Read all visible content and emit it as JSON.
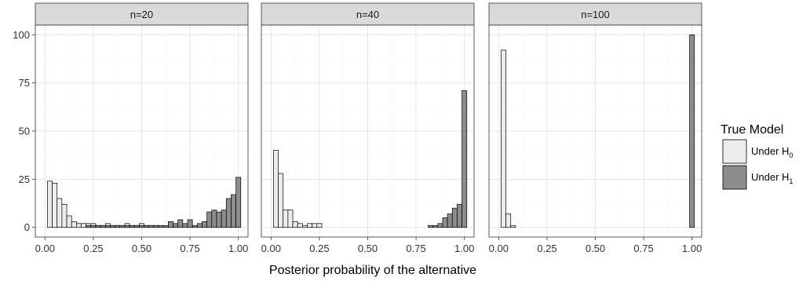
{
  "chart_data": {
    "type": "bar",
    "xlabel": "Posterior probability of the alternative",
    "ylabel": "",
    "xlim": [
      0,
      1
    ],
    "ylim": [
      0,
      100
    ],
    "x_ticks": [
      "0.00",
      "0.25",
      "0.50",
      "0.75",
      "1.00"
    ],
    "y_ticks": [
      "0",
      "25",
      "50",
      "75",
      "100"
    ],
    "bin_width": 0.025,
    "legend": {
      "title": "True Model",
      "position": "right",
      "entries": [
        {
          "label": "Under H",
          "subscript": "0",
          "color": "#ececec"
        },
        {
          "label": "Under H",
          "subscript": "1",
          "color": "#8c8c8c"
        }
      ]
    },
    "panels": [
      {
        "label": "n=20",
        "series": [
          {
            "name": "Under H0",
            "x": [
              0.025,
              0.05,
              0.075,
              0.1,
              0.125,
              0.15,
              0.175,
              0.2,
              0.225,
              0.25,
              0.275,
              0.3,
              0.325,
              0.35,
              0.375,
              0.4,
              0.425,
              0.45,
              0.475,
              0.5,
              0.525,
              0.55,
              0.575
            ],
            "values": [
              24,
              23,
              15,
              12,
              6,
              3,
              2,
              2,
              2,
              2,
              1,
              1,
              2,
              1,
              1,
              1,
              2,
              1,
              1,
              2,
              1,
              1,
              1
            ]
          },
          {
            "name": "Under H1",
            "x": [
              0.225,
              0.25,
              0.275,
              0.3,
              0.325,
              0.35,
              0.375,
              0.4,
              0.425,
              0.45,
              0.475,
              0.5,
              0.525,
              0.55,
              0.575,
              0.6,
              0.625,
              0.65,
              0.675,
              0.7,
              0.725,
              0.75,
              0.775,
              0.8,
              0.825,
              0.85,
              0.875,
              0.9,
              0.925,
              0.95,
              0.975,
              1.0
            ],
            "values": [
              1,
              1,
              1,
              1,
              1,
              1,
              1,
              1,
              1,
              1,
              1,
              1,
              1,
              1,
              1,
              1,
              1,
              3,
              2,
              4,
              2,
              4,
              1,
              2,
              3,
              8,
              9,
              8,
              9,
              15,
              17,
              26
            ]
          }
        ]
      },
      {
        "label": "n=40",
        "series": [
          {
            "name": "Under H0",
            "x": [
              0.025,
              0.05,
              0.075,
              0.1,
              0.125,
              0.15,
              0.175,
              0.2,
              0.225,
              0.25
            ],
            "values": [
              40,
              28,
              9,
              9,
              3,
              2,
              1,
              2,
              2,
              2
            ]
          },
          {
            "name": "Under H1",
            "x": [
              0.825,
              0.85,
              0.875,
              0.9,
              0.925,
              0.95,
              0.975,
              1.0
            ],
            "values": [
              1,
              1,
              2,
              5,
              7,
              10,
              12,
              71
            ]
          }
        ]
      },
      {
        "label": "n=100",
        "series": [
          {
            "name": "Under H0",
            "x": [
              0.025,
              0.05,
              0.075
            ],
            "values": [
              92,
              7,
              1
            ]
          },
          {
            "name": "Under H1",
            "x": [
              1.0
            ],
            "values": [
              100
            ]
          }
        ]
      }
    ]
  },
  "colors": {
    "under_h0": "#ececec",
    "under_h1": "#8c8c8c",
    "strip_bg": "#d9d9d9",
    "grid_major": "#e6e6e6",
    "grid_minor": "#f3f3f3",
    "panel_border": "#333333",
    "bar_outline": "#000000"
  }
}
